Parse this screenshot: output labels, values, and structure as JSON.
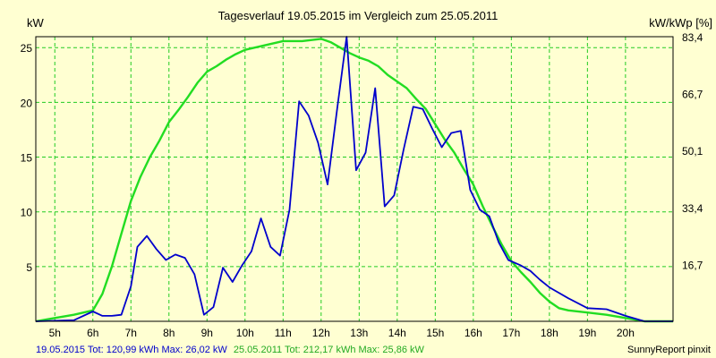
{
  "title": "Tagesverlauf 19.05.2015 im Vergleich zum 25.05.2011",
  "colors": {
    "background": "#ffffd2",
    "plot_background": "#ffffd2",
    "grid": "#22cc22",
    "series_2015": "#0000cc",
    "series_2011": "#22dd22",
    "footer_2015": "#0000cc",
    "footer_2011": "#22aa22"
  },
  "footer": {
    "left_2015": "19.05.2015 Tot: 120,99 kWh Max: 26,02 kW",
    "left_2011": "25.05.2011 Tot: 212,17 kWh Max: 25,86 kW",
    "right": "SunnyReport pinxit"
  },
  "chart_data": {
    "type": "line",
    "title": "Tagesverlauf 19.05.2015 im Vergleich zum 25.05.2011",
    "xlabel": "",
    "ylabel": "kW",
    "y2label": "kW/kWp [%]",
    "xlim": [
      4.5,
      21.25
    ],
    "ylim": [
      0,
      26
    ],
    "grid": true,
    "x_ticks": [
      5,
      6,
      7,
      8,
      9,
      10,
      11,
      12,
      13,
      14,
      15,
      16,
      17,
      18,
      19,
      20
    ],
    "x_tick_labels": [
      "5h",
      "6h",
      "7h",
      "8h",
      "9h",
      "10h",
      "11h",
      "12h",
      "13h",
      "14h",
      "15h",
      "16h",
      "17h",
      "18h",
      "19h",
      "20h"
    ],
    "y_ticks": [
      5,
      10,
      15,
      20,
      25
    ],
    "y_tick_labels": [
      "5",
      "10",
      "15",
      "20",
      "25"
    ],
    "y2_ticks": [
      5.2,
      10.4,
      15.6,
      20.8,
      26.0
    ],
    "y2_tick_labels": [
      "16,7",
      "33,4",
      "50,1",
      "66,7",
      "83,4"
    ],
    "series": [
      {
        "name": "19.05.2015",
        "color": "#0000cc",
        "points": [
          [
            4.5,
            0.0
          ],
          [
            5.5,
            0.1
          ],
          [
            6.0,
            0.9
          ],
          [
            6.25,
            0.5
          ],
          [
            6.5,
            0.5
          ],
          [
            6.75,
            0.6
          ],
          [
            7.0,
            3.2
          ],
          [
            7.17,
            6.8
          ],
          [
            7.42,
            7.8
          ],
          [
            7.67,
            6.6
          ],
          [
            7.92,
            5.6
          ],
          [
            8.17,
            6.1
          ],
          [
            8.42,
            5.8
          ],
          [
            8.67,
            4.3
          ],
          [
            8.92,
            0.6
          ],
          [
            9.17,
            1.3
          ],
          [
            9.42,
            4.9
          ],
          [
            9.67,
            3.6
          ],
          [
            9.92,
            5.1
          ],
          [
            10.17,
            6.4
          ],
          [
            10.42,
            9.4
          ],
          [
            10.67,
            6.8
          ],
          [
            10.92,
            6.0
          ],
          [
            11.17,
            10.2
          ],
          [
            11.42,
            20.1
          ],
          [
            11.67,
            18.8
          ],
          [
            11.92,
            16.3
          ],
          [
            12.17,
            12.5
          ],
          [
            12.42,
            19.4
          ],
          [
            12.67,
            26.0
          ],
          [
            12.92,
            13.8
          ],
          [
            13.17,
            15.4
          ],
          [
            13.42,
            21.3
          ],
          [
            13.67,
            10.5
          ],
          [
            13.92,
            11.5
          ],
          [
            14.17,
            15.7
          ],
          [
            14.42,
            19.6
          ],
          [
            14.67,
            19.4
          ],
          [
            14.92,
            17.6
          ],
          [
            15.17,
            15.9
          ],
          [
            15.42,
            17.2
          ],
          [
            15.67,
            17.4
          ],
          [
            15.92,
            12.0
          ],
          [
            16.17,
            10.2
          ],
          [
            16.42,
            9.6
          ],
          [
            16.67,
            7.2
          ],
          [
            16.92,
            5.6
          ],
          [
            17.25,
            5.1
          ],
          [
            17.5,
            4.6
          ],
          [
            17.75,
            3.8
          ],
          [
            18.0,
            3.1
          ],
          [
            18.5,
            2.1
          ],
          [
            19.0,
            1.2
          ],
          [
            19.5,
            1.1
          ],
          [
            20.0,
            0.5
          ],
          [
            20.5,
            0.0
          ],
          [
            21.25,
            0.0
          ]
        ]
      },
      {
        "name": "25.05.2011",
        "color": "#22dd22",
        "points": [
          [
            4.5,
            0.0
          ],
          [
            5.0,
            0.3
          ],
          [
            5.5,
            0.6
          ],
          [
            6.0,
            1.0
          ],
          [
            6.25,
            2.5
          ],
          [
            6.5,
            5.0
          ],
          [
            6.75,
            8.0
          ],
          [
            7.0,
            11.0
          ],
          [
            7.25,
            13.2
          ],
          [
            7.5,
            15.0
          ],
          [
            7.75,
            16.5
          ],
          [
            8.0,
            18.2
          ],
          [
            8.25,
            19.3
          ],
          [
            8.5,
            20.5
          ],
          [
            8.75,
            21.8
          ],
          [
            9.0,
            22.8
          ],
          [
            9.25,
            23.3
          ],
          [
            9.5,
            23.9
          ],
          [
            9.75,
            24.4
          ],
          [
            10.0,
            24.8
          ],
          [
            10.5,
            25.2
          ],
          [
            11.0,
            25.6
          ],
          [
            11.5,
            25.6
          ],
          [
            12.0,
            25.8
          ],
          [
            12.25,
            25.5
          ],
          [
            12.5,
            25.0
          ],
          [
            12.75,
            24.5
          ],
          [
            13.0,
            24.1
          ],
          [
            13.25,
            23.8
          ],
          [
            13.5,
            23.3
          ],
          [
            13.75,
            22.5
          ],
          [
            14.0,
            21.9
          ],
          [
            14.25,
            21.3
          ],
          [
            14.5,
            20.3
          ],
          [
            14.75,
            19.4
          ],
          [
            15.0,
            18.0
          ],
          [
            15.25,
            16.6
          ],
          [
            15.5,
            15.4
          ],
          [
            15.75,
            13.9
          ],
          [
            16.0,
            12.5
          ],
          [
            16.25,
            10.5
          ],
          [
            16.5,
            8.7
          ],
          [
            16.75,
            7.0
          ],
          [
            17.0,
            5.5
          ],
          [
            17.25,
            4.5
          ],
          [
            17.5,
            3.6
          ],
          [
            17.75,
            2.6
          ],
          [
            18.0,
            1.8
          ],
          [
            18.25,
            1.2
          ],
          [
            18.5,
            1.0
          ],
          [
            19.0,
            0.8
          ],
          [
            19.5,
            0.6
          ],
          [
            20.0,
            0.3
          ],
          [
            20.5,
            0.0
          ],
          [
            21.25,
            0.0
          ]
        ]
      }
    ]
  }
}
